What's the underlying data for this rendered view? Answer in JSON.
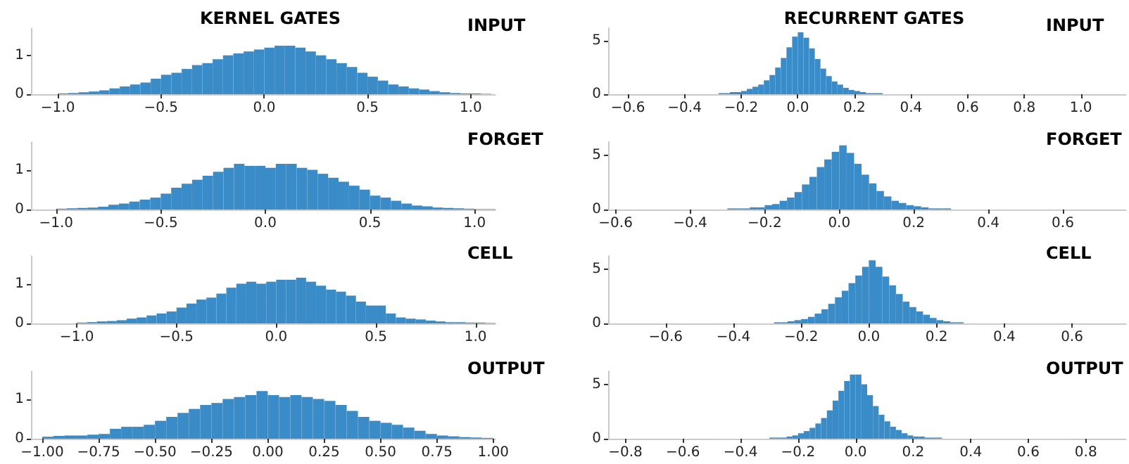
{
  "chart_data": [
    {
      "type": "histogram",
      "title": "KERNEL GATES",
      "annotations": [
        "INPUT"
      ],
      "color": "#3a8cc8",
      "xlim": [
        -1.13,
        1.12
      ],
      "ylim": [
        0,
        1.7
      ],
      "yticks": [
        0,
        1
      ],
      "xticks": [
        {
          "value": -1,
          "label": "−1.0"
        },
        {
          "value": -0.5,
          "label": "−0.5"
        },
        {
          "value": 0,
          "label": "0.0"
        },
        0.5,
        {
          "value": 1,
          "label": "1.0"
        }
      ],
      "bins": [
        -1.0,
        -0.95,
        -0.9,
        -0.85,
        -0.8,
        -0.75,
        -0.7,
        -0.65,
        -0.6,
        -0.55,
        -0.5,
        -0.45,
        -0.4,
        -0.35,
        -0.3,
        -0.25,
        -0.2,
        -0.15,
        -0.1,
        -0.05,
        0,
        0.05,
        0.1,
        0.15,
        0.2,
        0.25,
        0.3,
        0.35,
        0.4,
        0.45,
        0.5,
        0.55,
        0.6,
        0.65,
        0.7,
        0.75,
        0.8,
        0.85,
        0.9,
        0.95,
        1.0,
        1.05,
        1.1
      ],
      "values": [
        0.02,
        0.03,
        0.05,
        0.07,
        0.1,
        0.15,
        0.2,
        0.25,
        0.3,
        0.4,
        0.5,
        0.55,
        0.65,
        0.75,
        0.8,
        0.9,
        1.0,
        1.05,
        1.1,
        1.15,
        1.2,
        1.25,
        1.25,
        1.2,
        1.1,
        1.0,
        0.9,
        0.8,
        0.7,
        0.55,
        0.45,
        0.35,
        0.25,
        0.2,
        0.15,
        0.12,
        0.08,
        0.05,
        0.03,
        0.02,
        0.02,
        0.01
      ]
    },
    {
      "type": "histogram",
      "annotations": [
        "FORGET"
      ],
      "color": "#3a8cc8",
      "xlim": [
        -1.12,
        1.1
      ],
      "ylim": [
        0,
        1.7
      ],
      "yticks": [
        0,
        1
      ],
      "xticks": [
        {
          "value": -1,
          "label": "−1.0"
        },
        {
          "value": -0.5,
          "label": "−0.5"
        },
        {
          "value": 0,
          "label": "0.0"
        },
        0.5,
        {
          "value": 1,
          "label": "1.0"
        }
      ],
      "bins": [
        -1.0,
        -0.95,
        -0.9,
        -0.85,
        -0.8,
        -0.75,
        -0.7,
        -0.65,
        -0.6,
        -0.55,
        -0.5,
        -0.45,
        -0.4,
        -0.35,
        -0.3,
        -0.25,
        -0.2,
        -0.15,
        -0.1,
        -0.05,
        0,
        0.05,
        0.1,
        0.15,
        0.2,
        0.25,
        0.3,
        0.35,
        0.4,
        0.45,
        0.5,
        0.55,
        0.6,
        0.65,
        0.7,
        0.75,
        0.8,
        0.85,
        0.9,
        0.95,
        1.0,
        1.05,
        1.1
      ],
      "values": [
        0.02,
        0.03,
        0.04,
        0.05,
        0.07,
        0.12,
        0.15,
        0.2,
        0.25,
        0.3,
        0.4,
        0.55,
        0.65,
        0.75,
        0.85,
        0.95,
        1.05,
        1.15,
        1.1,
        1.1,
        1.05,
        1.15,
        1.15,
        1.05,
        1.0,
        0.9,
        0.8,
        0.7,
        0.6,
        0.5,
        0.35,
        0.3,
        0.22,
        0.15,
        0.1,
        0.08,
        0.05,
        0.04,
        0.03,
        0.02,
        0.01,
        0.01
      ]
    },
    {
      "type": "histogram",
      "annotations": [
        "CELL"
      ],
      "color": "#3a8cc8",
      "xlim": [
        -1.23,
        1.1
      ],
      "ylim": [
        0,
        1.7
      ],
      "yticks": [
        0,
        1
      ],
      "xticks": [
        {
          "value": -1,
          "label": "−1.0"
        },
        {
          "value": -0.5,
          "label": "−0.5"
        },
        {
          "value": 0,
          "label": "0.0"
        },
        0.5,
        {
          "value": 1,
          "label": "1.0"
        }
      ],
      "bins": [
        -1.0,
        -0.95,
        -0.9,
        -0.85,
        -0.8,
        -0.75,
        -0.7,
        -0.65,
        -0.6,
        -0.55,
        -0.5,
        -0.45,
        -0.4,
        -0.35,
        -0.3,
        -0.25,
        -0.2,
        -0.15,
        -0.1,
        -0.05,
        0,
        0.05,
        0.1,
        0.15,
        0.2,
        0.25,
        0.3,
        0.35,
        0.4,
        0.45,
        0.5,
        0.55,
        0.6,
        0.65,
        0.7,
        0.75,
        0.8,
        0.85,
        0.9,
        0.95,
        1.0,
        1.05,
        1.1
      ],
      "values": [
        0.02,
        0.03,
        0.05,
        0.06,
        0.08,
        0.12,
        0.15,
        0.2,
        0.25,
        0.3,
        0.4,
        0.5,
        0.6,
        0.65,
        0.75,
        0.9,
        1.0,
        1.05,
        1.0,
        1.05,
        1.1,
        1.1,
        1.15,
        1.05,
        0.95,
        0.85,
        0.8,
        0.7,
        0.55,
        0.45,
        0.45,
        0.25,
        0.15,
        0.12,
        0.1,
        0.07,
        0.05,
        0.03,
        0.03,
        0.02,
        0.02,
        0.01
      ]
    },
    {
      "type": "histogram",
      "annotations": [
        "OUTPUT"
      ],
      "color": "#3a8cc8",
      "xlim": [
        -1.05,
        1.01
      ],
      "ylim": [
        0,
        1.7
      ],
      "yticks": [
        0,
        1
      ],
      "xticks": [
        {
          "value": -1,
          "label": "−1.00"
        },
        {
          "value": -0.75,
          "label": "−0.75"
        },
        {
          "value": -0.5,
          "label": "−0.50"
        },
        {
          "value": -0.25,
          "label": "−0.25"
        },
        {
          "value": 0,
          "label": "0.00"
        },
        0.25,
        {
          "value": 0.5,
          "label": "0.50"
        },
        0.75,
        {
          "value": 1,
          "label": "1.00"
        }
      ],
      "bins": [
        -1.0,
        -0.95,
        -0.9,
        -0.85,
        -0.8,
        -0.75,
        -0.7,
        -0.65,
        -0.6,
        -0.55,
        -0.5,
        -0.45,
        -0.4,
        -0.35,
        -0.3,
        -0.25,
        -0.2,
        -0.15,
        -0.1,
        -0.05,
        0,
        0.05,
        0.1,
        0.15,
        0.2,
        0.25,
        0.3,
        0.35,
        0.4,
        0.45,
        0.5,
        0.55,
        0.6,
        0.65,
        0.7,
        0.75,
        0.8,
        0.85,
        0.9,
        0.95,
        1.0
      ],
      "values": [
        0.05,
        0.07,
        0.08,
        0.08,
        0.1,
        0.12,
        0.25,
        0.3,
        0.3,
        0.35,
        0.45,
        0.55,
        0.65,
        0.75,
        0.85,
        0.9,
        1.0,
        1.05,
        1.1,
        1.2,
        1.1,
        1.05,
        1.1,
        1.05,
        1.0,
        0.95,
        0.85,
        0.7,
        0.55,
        0.45,
        0.4,
        0.35,
        0.28,
        0.2,
        0.12,
        0.08,
        0.06,
        0.04,
        0.03,
        0.02
      ]
    },
    {
      "type": "histogram",
      "title": "RECURRENT GATES",
      "annotations": [
        "INPUT"
      ],
      "color": "#3a8cc8",
      "xlim": [
        -0.67,
        1.16
      ],
      "ylim": [
        0,
        6.2
      ],
      "yticks": [
        0,
        5
      ],
      "xticks": [
        {
          "value": -0.6,
          "label": "−0.6"
        },
        {
          "value": -0.4,
          "label": "−0.4"
        },
        {
          "value": -0.2,
          "label": "−0.2"
        },
        {
          "value": 0,
          "label": "0.0"
        },
        0.2,
        0.4,
        0.6,
        0.8,
        {
          "value": 1,
          "label": "1.0"
        }
      ],
      "bins": [
        -0.34,
        -0.32,
        -0.3,
        -0.28,
        -0.26,
        -0.24,
        -0.22,
        -0.2,
        -0.18,
        -0.16,
        -0.14,
        -0.12,
        -0.1,
        -0.08,
        -0.06,
        -0.04,
        -0.02,
        0,
        0.02,
        0.04,
        0.06,
        0.08,
        0.1,
        0.12,
        0.14,
        0.16,
        0.18,
        0.2,
        0.22,
        0.24,
        0.26,
        0.28,
        0.3,
        0.32,
        0.34
      ],
      "values": [
        0,
        0,
        0,
        0.1,
        0.1,
        0.2,
        0.2,
        0.3,
        0.5,
        0.7,
        0.9,
        1.3,
        1.8,
        2.5,
        3.4,
        4.4,
        5.4,
        5.8,
        5.3,
        4.3,
        3.3,
        2.4,
        1.7,
        1.2,
        0.9,
        0.6,
        0.4,
        0.3,
        0.2,
        0.1,
        0.1,
        0.1,
        0,
        0
      ]
    },
    {
      "type": "histogram",
      "annotations": [
        "FORGET"
      ],
      "color": "#3a8cc8",
      "xlim": [
        -0.62,
        0.77
      ],
      "ylim": [
        0,
        6.2
      ],
      "yticks": [
        0,
        5
      ],
      "xticks": [
        {
          "value": -0.6,
          "label": "−0.6"
        },
        {
          "value": -0.4,
          "label": "−0.4"
        },
        {
          "value": -0.2,
          "label": "−0.2"
        },
        {
          "value": 0,
          "label": "0.0"
        },
        0.2,
        0.4,
        0.6
      ],
      "bins": [
        -0.34,
        -0.32,
        -0.3,
        -0.28,
        -0.26,
        -0.24,
        -0.22,
        -0.2,
        -0.18,
        -0.16,
        -0.14,
        -0.12,
        -0.1,
        -0.08,
        -0.06,
        -0.04,
        -0.02,
        0,
        0.02,
        0.04,
        0.06,
        0.08,
        0.1,
        0.12,
        0.14,
        0.16,
        0.18,
        0.2,
        0.22,
        0.24,
        0.26,
        0.28,
        0.3,
        0.32,
        0.34
      ],
      "values": [
        0,
        0,
        0.1,
        0.1,
        0.1,
        0.2,
        0.2,
        0.4,
        0.5,
        0.8,
        1.1,
        1.6,
        2.3,
        3.0,
        3.9,
        4.6,
        5.3,
        5.9,
        5.2,
        4.2,
        3.2,
        2.4,
        1.7,
        1.2,
        0.8,
        0.6,
        0.4,
        0.3,
        0.2,
        0.1,
        0.1,
        0.1,
        0,
        0
      ]
    },
    {
      "type": "histogram",
      "annotations": [
        "CELL"
      ],
      "color": "#3a8cc8",
      "xlim": [
        -0.77,
        0.76
      ],
      "ylim": [
        0,
        6.2
      ],
      "yticks": [
        0,
        5
      ],
      "xticks": [
        {
          "value": -0.6,
          "label": "−0.6"
        },
        {
          "value": -0.4,
          "label": "−0.4"
        },
        {
          "value": -0.2,
          "label": "−0.2"
        },
        {
          "value": 0,
          "label": "0.0"
        },
        0.2,
        0.4,
        0.6
      ],
      "bins": [
        -0.34,
        -0.32,
        -0.3,
        -0.28,
        -0.26,
        -0.24,
        -0.22,
        -0.2,
        -0.18,
        -0.16,
        -0.14,
        -0.12,
        -0.1,
        -0.08,
        -0.06,
        -0.04,
        -0.02,
        0,
        0.02,
        0.04,
        0.06,
        0.08,
        0.1,
        0.12,
        0.14,
        0.16,
        0.18,
        0.2,
        0.22,
        0.24,
        0.26,
        0.28,
        0.3,
        0.32,
        0.34
      ],
      "values": [
        0,
        0,
        0,
        0.1,
        0.1,
        0.2,
        0.3,
        0.4,
        0.6,
        0.9,
        1.3,
        1.8,
        2.4,
        3.0,
        3.7,
        4.4,
        5.2,
        5.8,
        5.2,
        4.3,
        3.5,
        2.7,
        2.0,
        1.5,
        1.1,
        0.8,
        0.5,
        0.3,
        0.2,
        0.1,
        0.1,
        0,
        0,
        0
      ]
    },
    {
      "type": "histogram",
      "annotations": [
        "OUTPUT"
      ],
      "color": "#3a8cc8",
      "xlim": [
        -0.86,
        0.94
      ],
      "ylim": [
        0,
        6.2
      ],
      "yticks": [
        0,
        5
      ],
      "xticks": [
        {
          "value": -0.8,
          "label": "−0.8"
        },
        {
          "value": -0.6,
          "label": "−0.6"
        },
        {
          "value": -0.4,
          "label": "−0.4"
        },
        {
          "value": -0.2,
          "label": "−0.2"
        },
        {
          "value": 0,
          "label": "0.0"
        },
        0.2,
        0.4,
        0.6,
        0.8
      ],
      "bins": [
        -0.34,
        -0.32,
        -0.3,
        -0.28,
        -0.26,
        -0.24,
        -0.22,
        -0.2,
        -0.18,
        -0.16,
        -0.14,
        -0.12,
        -0.1,
        -0.08,
        -0.06,
        -0.04,
        -0.02,
        0,
        0.02,
        0.04,
        0.06,
        0.08,
        0.1,
        0.12,
        0.14,
        0.16,
        0.18,
        0.2,
        0.22,
        0.24,
        0.26,
        0.28,
        0.3,
        0.32,
        0.34
      ],
      "values": [
        0,
        0,
        0.1,
        0.1,
        0.1,
        0.2,
        0.3,
        0.5,
        0.7,
        1.0,
        1.4,
        1.9,
        2.6,
        3.5,
        4.4,
        5.3,
        5.9,
        5.9,
        5.0,
        4.0,
        3.0,
        2.2,
        1.6,
        1.1,
        0.8,
        0.5,
        0.3,
        0.2,
        0.2,
        0.1,
        0.1,
        0.1,
        0,
        0
      ]
    }
  ]
}
